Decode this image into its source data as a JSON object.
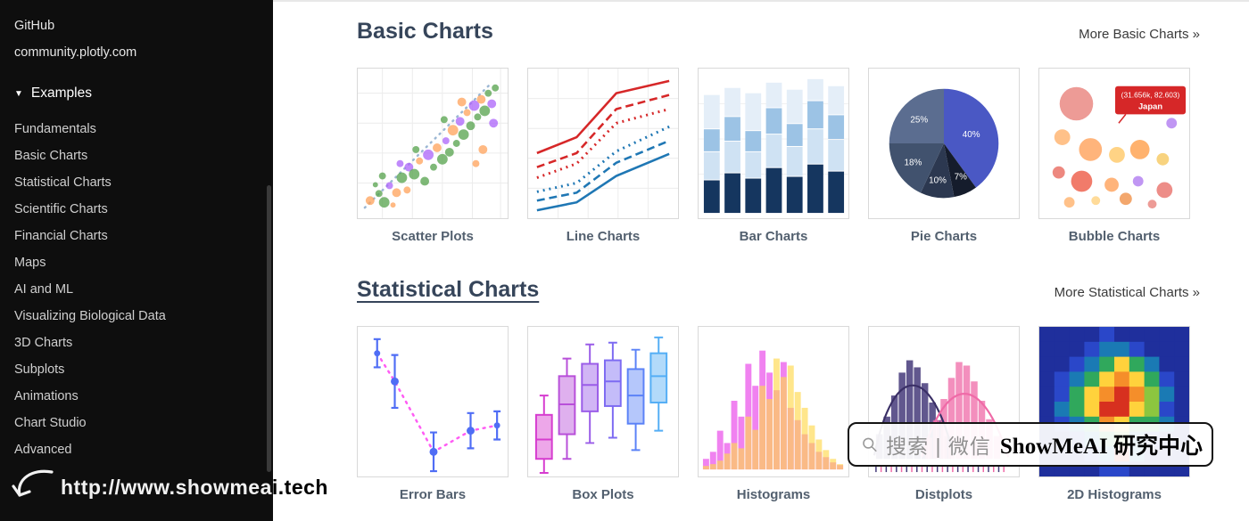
{
  "sidebar": {
    "links": [
      {
        "label": "GitHub"
      },
      {
        "label": "community.plotly.com"
      }
    ],
    "examples_label": "Examples",
    "chevron": "▼",
    "items": [
      "Fundamentals",
      "Basic Charts",
      "Statistical Charts",
      "Scientific Charts",
      "Financial Charts",
      "Maps",
      "AI and ML",
      "Visualizing Biological Data",
      "3D Charts",
      "Subplots",
      "Animations",
      "Chart Studio",
      "Advanced"
    ]
  },
  "sections": [
    {
      "title": "Basic Charts",
      "more_label": "More Basic Charts »",
      "cards": [
        {
          "label": "Scatter Plots"
        },
        {
          "label": "Line Charts"
        },
        {
          "label": "Bar Charts"
        },
        {
          "label": "Pie Charts"
        },
        {
          "label": "Bubble Charts"
        }
      ]
    },
    {
      "title": "Statistical Charts",
      "more_label": "More Statistical Charts »",
      "cards": [
        {
          "label": "Error Bars"
        },
        {
          "label": "Box Plots"
        },
        {
          "label": "Histograms"
        },
        {
          "label": "Distplots"
        },
        {
          "label": "2D Histograms"
        }
      ]
    }
  ],
  "pie": {
    "labels": [
      "40%",
      "25%",
      "18%",
      "10%",
      "7%"
    ]
  },
  "bubble": {
    "annotation_line1": "(31.656k, 82.603)",
    "annotation_line2": "Japan"
  },
  "watermarks": {
    "site_url": "http://www.showmeai.tech",
    "badge_search": "搜索 | 微信",
    "badge_brand": "ShowMeAI 研究中心"
  },
  "colors": {
    "sidebar_bg": "#0e0e0e",
    "heading": "#36455a",
    "card_label": "#53606f",
    "more_link": "#3a3a3a",
    "annotation_red": "#d62728"
  }
}
